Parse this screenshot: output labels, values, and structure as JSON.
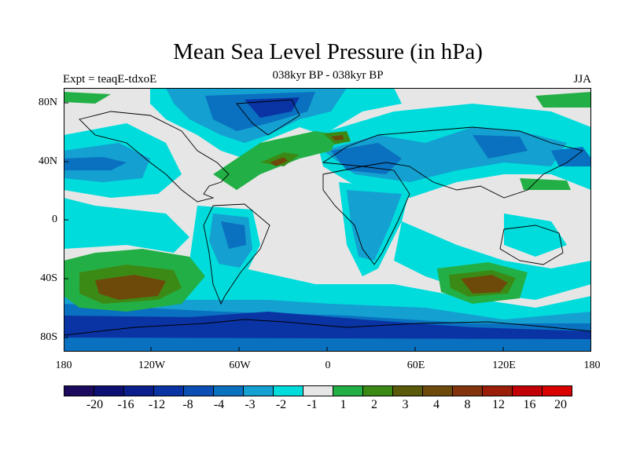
{
  "figure": {
    "title": "Mean Sea Level Pressure (in hPa)",
    "subtitle": "038kyr BP - 038kyr BP",
    "left_label": "Expt = teaqE-tdxoE",
    "right_label": "JJA"
  },
  "axes": {
    "y_ticks": [
      "80N",
      "40N",
      "0",
      "40S",
      "80S"
    ],
    "x_ticks": [
      "180",
      "120W",
      "60W",
      "0",
      "60E",
      "120E",
      "180"
    ]
  },
  "colorbar": {
    "colors": [
      "#1b0a5e",
      "#0d0f72",
      "#0b1f8c",
      "#0a33a3",
      "#0b4fb5",
      "#0a70c0",
      "#14a0d0",
      "#00dcdc",
      "#e6e6e6",
      "#22b046",
      "#3c8a16",
      "#5a5a0a",
      "#6e4a0a",
      "#84340c",
      "#9a1e08",
      "#c00006",
      "#d80000"
    ],
    "labels": [
      "-20",
      "-16",
      "-12",
      "-8",
      "-4",
      "-3",
      "-2",
      "-1",
      "1",
      "2",
      "3",
      "4",
      "8",
      "12",
      "16",
      "20"
    ]
  },
  "colors": {
    "ocean_neutral": "#e6e6e6",
    "light_blue": "#00dcdc",
    "mid_blue": "#14a0d0",
    "blue": "#0a70c0",
    "deep_blue": "#0a33a3",
    "green": "#22b046",
    "olive": "#3c8a16",
    "brown": "#6e4a0a",
    "coast": "#000000"
  }
}
